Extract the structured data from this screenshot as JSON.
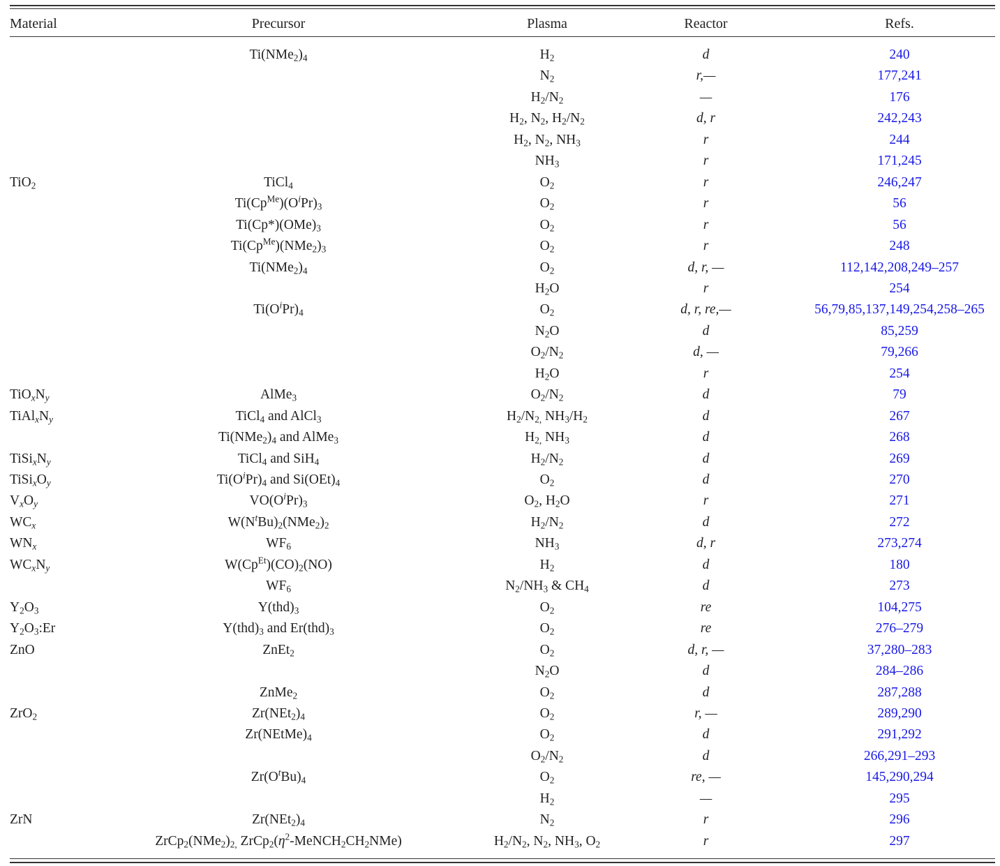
{
  "headers": {
    "material": "Material",
    "precursor": "Precursor",
    "plasma": "Plasma",
    "reactor": "Reactor",
    "refs": "Refs."
  },
  "rows": [
    {
      "material": "",
      "precursor": "Ti(NMe<sub>2</sub>)<sub>4</sub>",
      "plasma": "H<sub>2</sub>",
      "reactor": "d",
      "refs": "240"
    },
    {
      "material": "",
      "precursor": "",
      "plasma": "N<sub>2</sub>",
      "reactor": "r,—",
      "refs": "177,241"
    },
    {
      "material": "",
      "precursor": "",
      "plasma": "H<sub>2</sub>/N<sub>2</sub>",
      "reactor": "—",
      "refs": "176"
    },
    {
      "material": "",
      "precursor": "",
      "plasma": "H<sub>2</sub>, N<sub>2</sub>, H<sub>2</sub>/N<sub>2</sub>",
      "reactor": "d, r",
      "refs": "242,243"
    },
    {
      "material": "",
      "precursor": "",
      "plasma": "H<sub>2</sub>, N<sub>2</sub>, NH<sub>3</sub>",
      "reactor": "r",
      "refs": "244"
    },
    {
      "material": "",
      "precursor": "",
      "plasma": "NH<sub>3</sub>",
      "reactor": "r",
      "refs": "171,245"
    },
    {
      "material": "TiO<sub>2</sub>",
      "precursor": "TiCl<sub>4</sub>",
      "plasma": "O<sub>2</sub>",
      "reactor": "r",
      "refs": "246,247"
    },
    {
      "material": "",
      "precursor": "Ti(Cp<sup>Me</sup>)(O<sup><i>i</i></sup>Pr)<sub>3</sub>",
      "plasma": "O<sub>2</sub>",
      "reactor": "r",
      "refs": "56"
    },
    {
      "material": "",
      "precursor": "Ti(Cp*)(OMe)<sub>3</sub>",
      "plasma": "O<sub>2</sub>",
      "reactor": "r",
      "refs": "56"
    },
    {
      "material": "",
      "precursor": "Ti(Cp<sup>Me</sup>)(NMe<sub>2</sub>)<sub>3</sub>",
      "plasma": "O<sub>2</sub>",
      "reactor": "r",
      "refs": "248"
    },
    {
      "material": "",
      "precursor": "Ti(NMe<sub>2</sub>)<sub>4</sub>",
      "plasma": "O<sub>2</sub>",
      "reactor": "d, r, —",
      "refs": "112,142,208,249–257"
    },
    {
      "material": "",
      "precursor": "",
      "plasma": "H<sub>2</sub>O",
      "reactor": "r",
      "refs": "254"
    },
    {
      "material": "",
      "precursor": "Ti(O<sup><i>i</i></sup>Pr)<sub>4</sub>",
      "plasma": "O<sub>2</sub>",
      "reactor": "d, r, re,—",
      "refs": "56,79,85,137,149,254,258–265"
    },
    {
      "material": "",
      "precursor": "",
      "plasma": "N<sub>2</sub>O",
      "reactor": "d",
      "refs": "85,259"
    },
    {
      "material": "",
      "precursor": "",
      "plasma": "O<sub>2</sub>/N<sub>2</sub>",
      "reactor": "d, —",
      "refs": "79,266"
    },
    {
      "material": "",
      "precursor": "",
      "plasma": "H<sub>2</sub>O",
      "reactor": "r",
      "refs": "254"
    },
    {
      "material": "TiO<sub><i>x</i></sub>N<sub><i>y</i></sub>",
      "precursor": "AlMe<sub>3</sub>",
      "plasma": "O<sub>2</sub>/N<sub>2</sub>",
      "reactor": "d",
      "refs": "79"
    },
    {
      "material": "TiAl<sub><i>x</i></sub>N<sub><i>y</i></sub>",
      "precursor": "TiCl<sub>4</sub> and AlCl<sub>3</sub>",
      "plasma": "H<sub>2</sub>/N<sub>2,</sub> NH<sub>3</sub>/H<sub>2</sub>",
      "reactor": "d",
      "refs": "267"
    },
    {
      "material": "",
      "precursor": "Ti(NMe<sub>2</sub>)<sub>4</sub> and AlMe<sub>3</sub>",
      "plasma": "H<sub>2,</sub> NH<sub>3</sub>",
      "reactor": "d",
      "refs": "268"
    },
    {
      "material": "TiSi<sub><i>x</i></sub>N<sub><i>y</i></sub>",
      "precursor": "TiCl<sub>4</sub> and SiH<sub>4</sub>",
      "plasma": "H<sub>2</sub>/N<sub>2</sub>",
      "reactor": "d",
      "refs": "269"
    },
    {
      "material": "TiSi<sub><i>x</i></sub>O<sub><i>y</i></sub>",
      "precursor": "Ti(O<sup><i>i</i></sup>Pr)<sub>4</sub> and Si(OEt)<sub>4</sub>",
      "plasma": "O<sub>2</sub>",
      "reactor": "d",
      "refs": "270"
    },
    {
      "material": "V<sub><i>x</i></sub>O<sub><i>y</i></sub>",
      "precursor": "VO(O<sup><i>i</i></sup>Pr)<sub>3</sub>",
      "plasma": "O<sub>2</sub>, H<sub>2</sub>O",
      "reactor": "r",
      "refs": "271"
    },
    {
      "material": "WC<sub><i>x</i></sub>",
      "precursor": "W(N<sup><i>t</i></sup>Bu)<sub>2</sub>(NMe<sub>2</sub>)<sub>2</sub>",
      "plasma": "H<sub>2</sub>/N<sub>2</sub>",
      "reactor": "d",
      "refs": "272"
    },
    {
      "material": "WN<sub><i>x</i></sub>",
      "precursor": "WF<sub>6</sub>",
      "plasma": "NH<sub>3</sub>",
      "reactor": "d, r",
      "refs": "273,274"
    },
    {
      "material": "WC<sub><i>x</i></sub>N<sub><i>y</i></sub>",
      "precursor": "W(Cp<sup>Et</sup>)(CO)<sub>2</sub>(NO)",
      "plasma": "H<sub>2</sub>",
      "reactor": "d",
      "refs": "180"
    },
    {
      "material": "",
      "precursor": "WF<sub>6</sub>",
      "plasma": "N<sub>2</sub>/NH<sub>3</sub> &amp; CH<sub>4</sub>",
      "reactor": "d",
      "refs": "273"
    },
    {
      "material": "Y<sub>2</sub>O<sub>3</sub>",
      "precursor": "Y(thd)<sub>3</sub>",
      "plasma": "O<sub>2</sub>",
      "reactor": "re",
      "refs": "104,275"
    },
    {
      "material": "Y<sub>2</sub>O<sub>3</sub>:Er",
      "precursor": "Y(thd)<sub>3</sub> and Er(thd)<sub>3</sub>",
      "plasma": "O<sub>2</sub>",
      "reactor": "re",
      "refs": "276–279"
    },
    {
      "material": "ZnO",
      "precursor": "ZnEt<sub>2</sub>",
      "plasma": "O<sub>2</sub>",
      "reactor": "d, r, —",
      "refs": "37,280–283"
    },
    {
      "material": "",
      "precursor": "",
      "plasma": "N<sub>2</sub>O",
      "reactor": "d",
      "refs": "284–286"
    },
    {
      "material": "",
      "precursor": "ZnMe<sub>2</sub>",
      "plasma": "O<sub>2</sub>",
      "reactor": "d",
      "refs": "287,288"
    },
    {
      "material": "ZrO<sub>2</sub>",
      "precursor": "Zr(NEt<sub>2</sub>)<sub>4</sub>",
      "plasma": "O<sub>2</sub>",
      "reactor": "r, —",
      "refs": "289,290"
    },
    {
      "material": "",
      "precursor": "Zr(NEtMe)<sub>4</sub>",
      "plasma": "O<sub>2</sub>",
      "reactor": "d",
      "refs": "291,292"
    },
    {
      "material": "",
      "precursor": "",
      "plasma": "O<sub>2</sub>/N<sub>2</sub>",
      "reactor": "d",
      "refs": "266,291–293"
    },
    {
      "material": "",
      "precursor": "Zr(O<sup><i>t</i></sup>Bu)<sub>4</sub>",
      "plasma": "O<sub>2</sub>",
      "reactor": "re, —",
      "refs": "145,290,294"
    },
    {
      "material": "",
      "precursor": "",
      "plasma": "H<sub>2</sub>",
      "reactor": "—",
      "refs": "295"
    },
    {
      "material": "ZrN",
      "precursor": "Zr(NEt<sub>2</sub>)<sub>4</sub>",
      "plasma": "N<sub>2</sub>",
      "reactor": "r",
      "refs": "296"
    },
    {
      "material": "",
      "precursor": "ZrCp<sub>2</sub>(NMe<sub>2</sub>)<sub>2,</sub> ZrCp<sub>2</sub>(<i>η</i><sup>2</sup>-MeNCH<sub>2</sub>CH<sub>2</sub>NMe)",
      "plasma": "H<sub>2</sub>/N<sub>2</sub>, N<sub>2</sub>, NH<sub>3</sub>, O<sub>2</sub>",
      "reactor": "r",
      "refs": "297"
    }
  ]
}
